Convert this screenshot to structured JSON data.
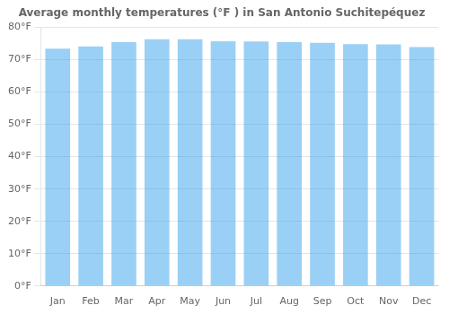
{
  "chart_data": {
    "type": "bar",
    "title": "Average monthly temperatures (°F ) in San Antonio Suchitepéquez",
    "categories": [
      "Jan",
      "Feb",
      "Mar",
      "Apr",
      "May",
      "Jun",
      "Jul",
      "Aug",
      "Sep",
      "Oct",
      "Nov",
      "Dec"
    ],
    "values": [
      73.4,
      74.1,
      75.4,
      76.3,
      76.3,
      75.7,
      75.6,
      75.4,
      75.2,
      74.8,
      74.7,
      73.9
    ],
    "ylim": [
      0,
      80
    ],
    "yticks": [
      {
        "value": 0,
        "label": "0°F"
      },
      {
        "value": 10,
        "label": "10°F"
      },
      {
        "value": 20,
        "label": "20°F"
      },
      {
        "value": 30,
        "label": "30°F"
      },
      {
        "value": 40,
        "label": "40°F"
      },
      {
        "value": 50,
        "label": "50°F"
      },
      {
        "value": 60,
        "label": "60°F"
      },
      {
        "value": 70,
        "label": "70°F"
      },
      {
        "value": 80,
        "label": "80°F"
      }
    ],
    "grid": true
  }
}
